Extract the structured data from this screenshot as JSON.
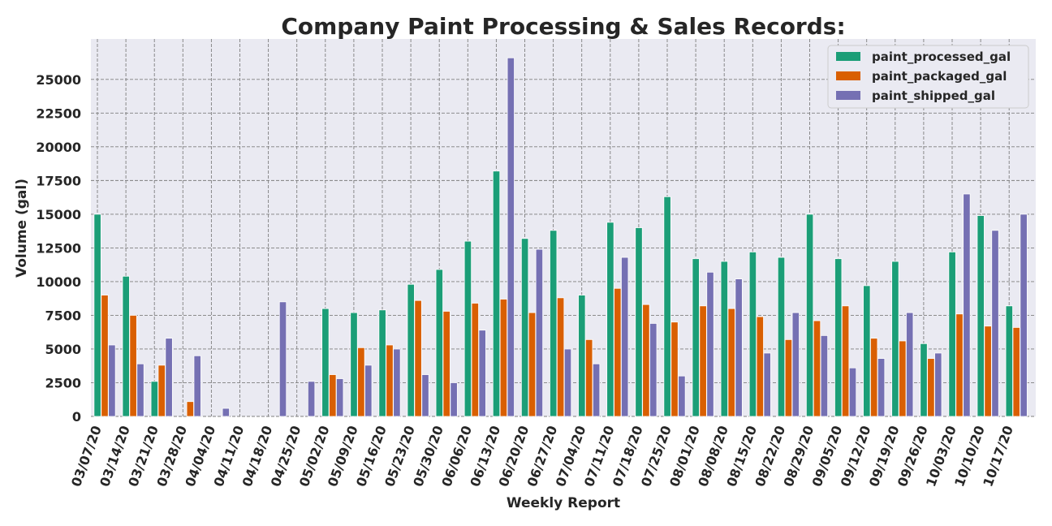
{
  "chart_data": {
    "type": "bar",
    "title": "Company Paint Processing & Sales Records:",
    "xlabel": "Weekly Report",
    "ylabel": "Volume (gal)",
    "ylim": [
      0,
      28000
    ],
    "yticks": [
      0,
      2500,
      5000,
      7500,
      10000,
      12500,
      15000,
      17500,
      20000,
      22500,
      25000
    ],
    "grid": true,
    "legend_position": "top-right",
    "categories": [
      "03/07/20",
      "03/14/20",
      "03/21/20",
      "03/28/20",
      "04/04/20",
      "04/11/20",
      "04/18/20",
      "04/25/20",
      "05/02/20",
      "05/09/20",
      "05/16/20",
      "05/23/20",
      "05/30/20",
      "06/06/20",
      "06/13/20",
      "06/20/20",
      "06/27/20",
      "07/04/20",
      "07/11/20",
      "07/18/20",
      "07/25/20",
      "08/01/20",
      "08/08/20",
      "08/15/20",
      "08/22/20",
      "08/29/20",
      "09/05/20",
      "09/12/20",
      "09/19/20",
      "09/26/20",
      "10/03/20",
      "10/10/20",
      "10/17/20"
    ],
    "series": [
      {
        "name": "paint_processed_gal",
        "color": "#1b9e77",
        "values": [
          15000,
          10400,
          2600,
          0,
          0,
          0,
          0,
          0,
          8000,
          7700,
          7900,
          9800,
          10900,
          13000,
          18200,
          13200,
          13800,
          9000,
          14400,
          14000,
          16300,
          11700,
          11500,
          12200,
          11800,
          15000,
          11700,
          9700,
          11500,
          5400,
          12200,
          14900,
          8200
        ]
      },
      {
        "name": "paint_packaged_gal",
        "color": "#d95f02",
        "values": [
          9000,
          7500,
          3800,
          1100,
          0,
          0,
          0,
          0,
          3100,
          5100,
          5300,
          8600,
          7800,
          8400,
          8700,
          7700,
          8800,
          5700,
          9500,
          8300,
          7000,
          8200,
          8000,
          7400,
          5700,
          7100,
          8200,
          5800,
          5600,
          4300,
          7600,
          6700,
          6600
        ]
      },
      {
        "name": "paint_shipped_gal",
        "color": "#7570b3",
        "values": [
          5300,
          3900,
          5800,
          4500,
          600,
          0,
          8500,
          2600,
          2800,
          3800,
          5000,
          3100,
          2500,
          6400,
          26600,
          12400,
          5000,
          3900,
          11800,
          6900,
          3000,
          10700,
          10200,
          4700,
          7700,
          6000,
          3600,
          4300,
          7700,
          4700,
          16500,
          13800,
          15000
        ]
      }
    ]
  }
}
